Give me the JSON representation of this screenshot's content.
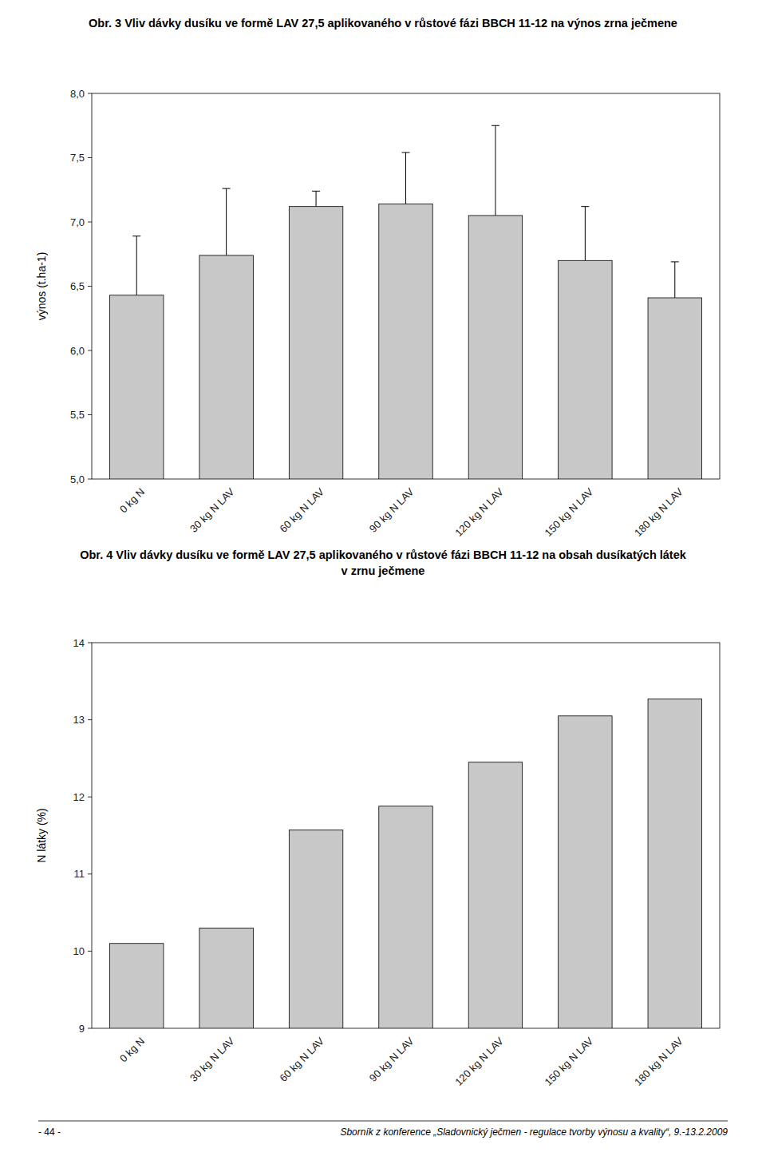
{
  "chart_data": [
    {
      "type": "bar",
      "title": "Obr. 3 Vliv dávky dusíku ve formě LAV 27,5 aplikovaného v růstové fázi BBCH 11-12 na výnos zrna ječmene",
      "categories": [
        "0 kg N",
        "30 kg N LAV",
        "60 kg N LAV",
        "90 kg N LAV",
        "120 kg N LAV",
        "150 kg N LAV",
        "180 kg N LAV"
      ],
      "values": [
        6.43,
        6.74,
        7.12,
        7.14,
        7.05,
        6.7,
        6.41
      ],
      "errors": [
        0.46,
        0.52,
        0.12,
        0.4,
        0.7,
        0.42,
        0.28
      ],
      "y_label": "výnos (t.ha-1)",
      "ylim": [
        5.0,
        8.0
      ],
      "yticks": [
        {
          "value": 5.0,
          "label": "5,0"
        },
        {
          "value": 5.5,
          "label": "5,5"
        },
        {
          "value": 6.0,
          "label": "6,0"
        },
        {
          "value": 6.5,
          "label": "6,5"
        },
        {
          "value": 7.0,
          "label": "7,0"
        },
        {
          "value": 7.5,
          "label": "7,5"
        },
        {
          "value": 8.0,
          "label": "8,0"
        }
      ],
      "color": "#c8c8c8",
      "grid": false
    },
    {
      "type": "bar",
      "title": "Obr. 4 Vliv dávky dusíku ve formě LAV 27,5 aplikovaného v růstové fázi BBCH 11-12 na obsah dusíkatých látek",
      "subtitle": "v zrnu ječmene",
      "categories": [
        "0 kg N",
        "30 kg N LAV",
        "60 kg N LAV",
        "90 kg N LAV",
        "120 kg N LAV",
        "150 kg N LAV",
        "180 kg N LAV"
      ],
      "values": [
        10.1,
        10.3,
        11.57,
        11.88,
        12.45,
        13.05,
        13.27
      ],
      "y_label": "N látky (%)",
      "ylim": [
        9.0,
        14.0
      ],
      "yticks": [
        9,
        10,
        11,
        12,
        13,
        14
      ],
      "color": "#c8c8c8",
      "grid": false,
      "annotations": [
        "- 44 -",
        "Sborník z konference „Sladovnický ječmen - regulace tvorby výnosu a kvality“, 9.-13.2.2009"
      ]
    }
  ]
}
